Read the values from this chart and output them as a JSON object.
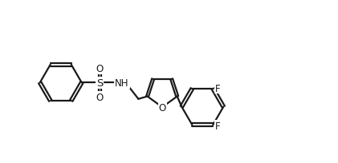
{
  "background_color": "#ffffff",
  "line_color": "#1a1a1a",
  "line_width": 1.6,
  "text_color": "#1a1a1a",
  "font_size": 8.5,
  "figsize": [
    4.21,
    2.05
  ],
  "dpi": 100,
  "xlim": [
    0.0,
    4.5
  ],
  "ylim": [
    0.3,
    2.1
  ]
}
